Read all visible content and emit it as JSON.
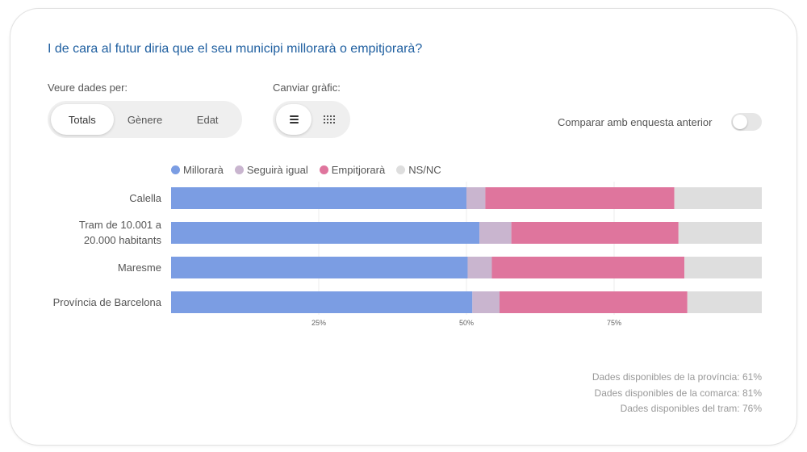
{
  "title": "I de cara al futur diria que el seu municipi millorarà o empitjorarà?",
  "view_by": {
    "label": "Veure dades per:",
    "options": [
      "Totals",
      "Gènere",
      "Edat"
    ],
    "selected": "Totals"
  },
  "chart_switch": {
    "label": "Canviar gràfic:",
    "options": [
      "bars-icon",
      "grid-icon"
    ],
    "selected": "bars-icon"
  },
  "compare": {
    "label": "Comparar amb enquesta anterior",
    "enabled": false
  },
  "chart_data": {
    "type": "bar",
    "orientation": "horizontal",
    "stacked": true,
    "categories": [
      "Calella",
      "Tram de 10.001 a 20.000 habitants",
      "Maresme",
      "Província de Barcelona"
    ],
    "category_lines": [
      [
        "Calella"
      ],
      [
        "Tram de 10.001 a",
        "20.000 habitants"
      ],
      [
        "Maresme"
      ],
      [
        "Província de Barcelona"
      ]
    ],
    "series": [
      {
        "name": "Millorarà",
        "color": "#7b9de3",
        "values": [
          50,
          52.2,
          50.2,
          51
        ]
      },
      {
        "name": "Seguirà igual",
        "color": "#c9b5cf",
        "values": [
          3.2,
          5.4,
          4.1,
          4.6
        ]
      },
      {
        "name": "Empitjorarà",
        "color": "#df759d",
        "values": [
          32,
          28.3,
          32.6,
          31.8
        ]
      },
      {
        "name": "NS/NC",
        "color": "#dedede",
        "values": [
          14.8,
          14.1,
          13.1,
          12.6
        ]
      }
    ],
    "xlim": [
      0,
      100
    ],
    "xticks": [
      25,
      50,
      75
    ],
    "xtick_labels": [
      "25%",
      "50%",
      "75%"
    ]
  },
  "footnotes": [
    "Dades disponibles de la província: 61%",
    "Dades disponibles de la comarca: 81%",
    "Dades disponibles del tram: 76%"
  ]
}
